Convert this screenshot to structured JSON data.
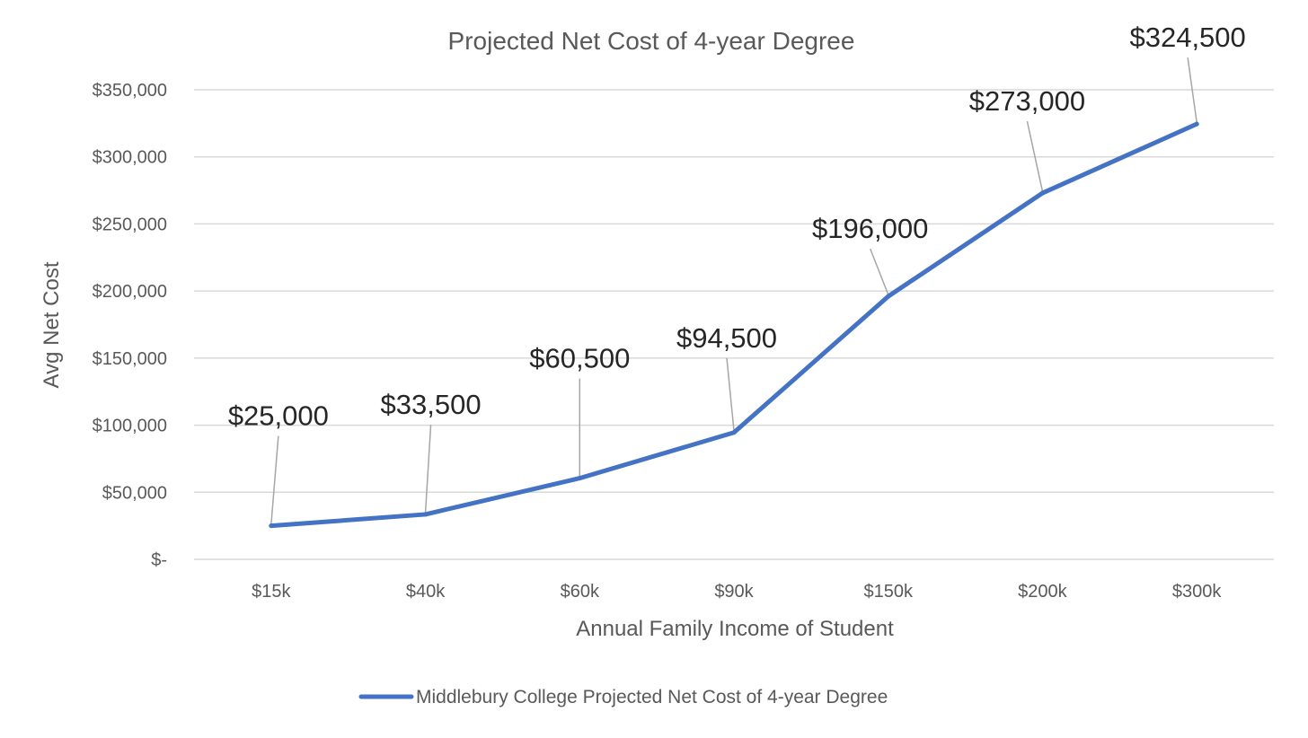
{
  "chart_data": {
    "type": "line",
    "title": "Projected Net Cost of 4-year Degree",
    "xlabel": "Annual Family Income of Student",
    "ylabel": "Avg Net Cost",
    "categories": [
      "$15k",
      "$40k",
      "$60k",
      "$90k",
      "$150k",
      "$200k",
      "$300k"
    ],
    "series": [
      {
        "name": "Middlebury College Projected Net Cost of 4-year Degree",
        "values": [
          25000,
          33500,
          60500,
          94500,
          196000,
          273000,
          324500
        ],
        "labels": [
          "$25,000",
          "$33,500",
          "$60,500",
          "$94,500",
          "$196,000",
          "$273,000",
          "$324,500"
        ],
        "color": "#4472c4"
      }
    ],
    "ylim": [
      0,
      350000
    ],
    "yticks": [
      0,
      50000,
      100000,
      150000,
      200000,
      250000,
      300000,
      350000
    ],
    "ytick_labels": [
      "$-",
      "$50,000",
      "$100,000",
      "$150,000",
      "$200,000",
      "$250,000",
      "$300,000",
      "$350,000"
    ],
    "grid": true,
    "legend_position": "bottom"
  }
}
